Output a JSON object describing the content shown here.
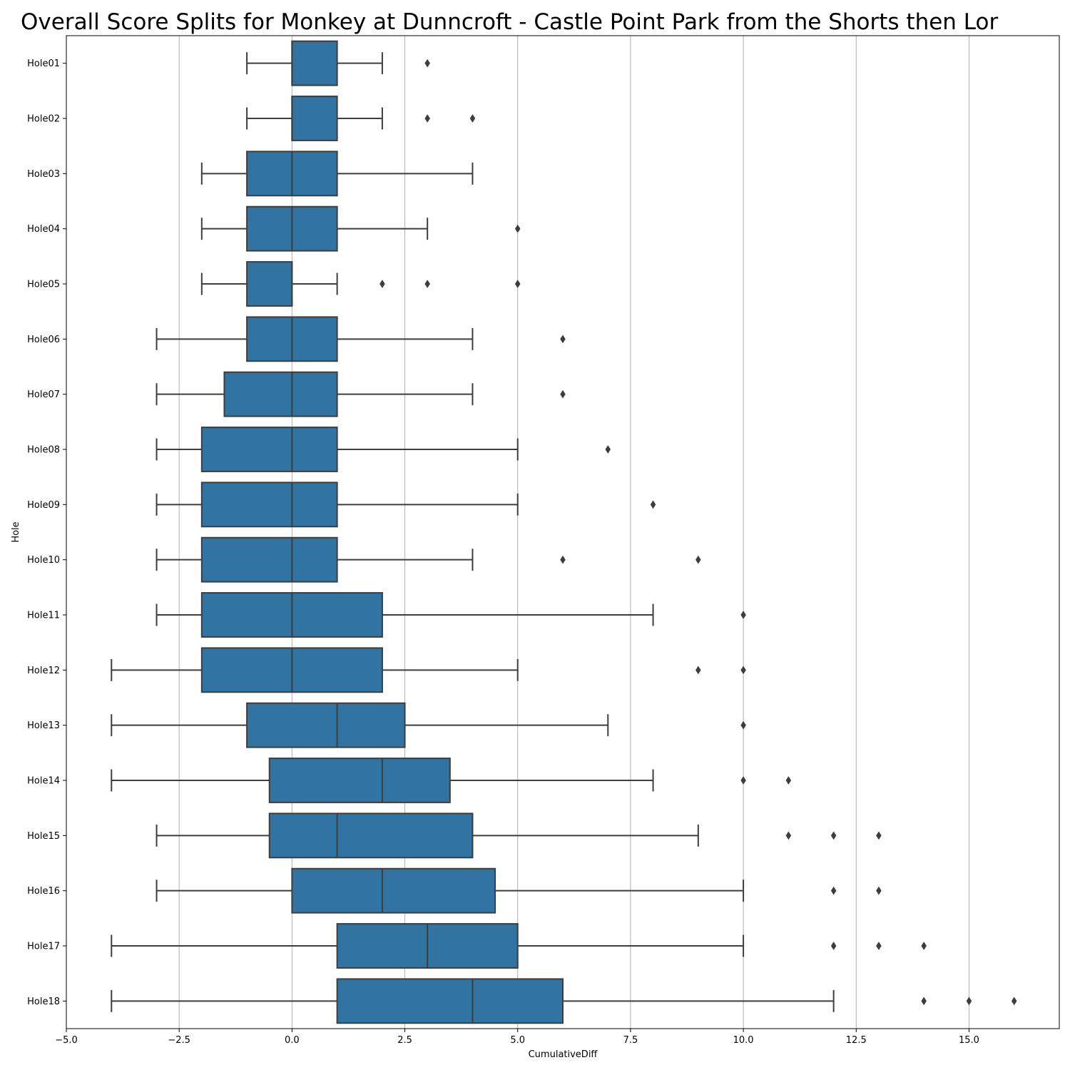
{
  "chart_data": {
    "type": "box",
    "orientation": "horizontal",
    "title": "Overall Score Splits for Monkey at Dunncroft - Castle Point Park from the Shorts then Lor",
    "xlabel": "CumulativeDiff",
    "ylabel": "Hole",
    "xlim": [
      -5.0,
      17.0
    ],
    "xticks": [
      -5.0,
      -2.5,
      0.0,
      2.5,
      5.0,
      7.5,
      10.0,
      12.5,
      15.0
    ],
    "xtick_labels": [
      "−5.0",
      "−2.5",
      "0.0",
      "2.5",
      "5.0",
      "7.5",
      "10.0",
      "12.5",
      "15.0"
    ],
    "grid": "vertical",
    "box_color": "#3274a1",
    "line_color": "#3d3d3d",
    "grid_color": "#b0b0b0",
    "categories": [
      "Hole01",
      "Hole02",
      "Hole03",
      "Hole04",
      "Hole05",
      "Hole06",
      "Hole07",
      "Hole08",
      "Hole09",
      "Hole10",
      "Hole11",
      "Hole12",
      "Hole13",
      "Hole14",
      "Hole15",
      "Hole16",
      "Hole17",
      "Hole18"
    ],
    "boxes": [
      {
        "whislo": -1,
        "q1": 0,
        "med": 0,
        "q3": 1,
        "whishi": 2,
        "fliers": [
          3
        ]
      },
      {
        "whislo": -1,
        "q1": 0,
        "med": 0,
        "q3": 1,
        "whishi": 2,
        "fliers": [
          3,
          4
        ]
      },
      {
        "whislo": -2,
        "q1": -1,
        "med": 0,
        "q3": 1,
        "whishi": 4,
        "fliers": []
      },
      {
        "whislo": -2,
        "q1": -1,
        "med": 0,
        "q3": 1,
        "whishi": 3,
        "fliers": [
          5
        ]
      },
      {
        "whislo": -2,
        "q1": -1,
        "med": 0,
        "q3": 0,
        "whishi": 1,
        "fliers": [
          2,
          3,
          5
        ]
      },
      {
        "whislo": -3,
        "q1": -1,
        "med": 0,
        "q3": 1,
        "whishi": 4,
        "fliers": [
          6
        ]
      },
      {
        "whislo": -3,
        "q1": -1.5,
        "med": 0,
        "q3": 1,
        "whishi": 4,
        "fliers": [
          6
        ]
      },
      {
        "whislo": -3,
        "q1": -2,
        "med": 0,
        "q3": 1,
        "whishi": 5,
        "fliers": [
          7
        ]
      },
      {
        "whislo": -3,
        "q1": -2,
        "med": 0,
        "q3": 1,
        "whishi": 5,
        "fliers": [
          8
        ]
      },
      {
        "whislo": -3,
        "q1": -2,
        "med": 0,
        "q3": 1,
        "whishi": 4,
        "fliers": [
          6,
          9
        ]
      },
      {
        "whislo": -3,
        "q1": -2,
        "med": 0,
        "q3": 2,
        "whishi": 8,
        "fliers": [
          10
        ]
      },
      {
        "whislo": -4,
        "q1": -2,
        "med": 0,
        "q3": 2,
        "whishi": 5,
        "fliers": [
          9,
          10
        ]
      },
      {
        "whislo": -4,
        "q1": -1,
        "med": 1,
        "q3": 2.5,
        "whishi": 7,
        "fliers": [
          10
        ]
      },
      {
        "whislo": -4,
        "q1": -0.5,
        "med": 2,
        "q3": 3.5,
        "whishi": 8,
        "fliers": [
          10,
          11
        ]
      },
      {
        "whislo": -3,
        "q1": -0.5,
        "med": 1,
        "q3": 4,
        "whishi": 9,
        "fliers": [
          11,
          12,
          13
        ]
      },
      {
        "whislo": -3,
        "q1": 0,
        "med": 2,
        "q3": 4.5,
        "whishi": 10,
        "fliers": [
          12,
          13
        ]
      },
      {
        "whislo": -4,
        "q1": 1,
        "med": 3,
        "q3": 5,
        "whishi": 10,
        "fliers": [
          12,
          13,
          14
        ]
      },
      {
        "whislo": -4,
        "q1": 1,
        "med": 4,
        "q3": 6,
        "whishi": 12,
        "fliers": [
          14,
          15,
          16
        ]
      }
    ]
  }
}
